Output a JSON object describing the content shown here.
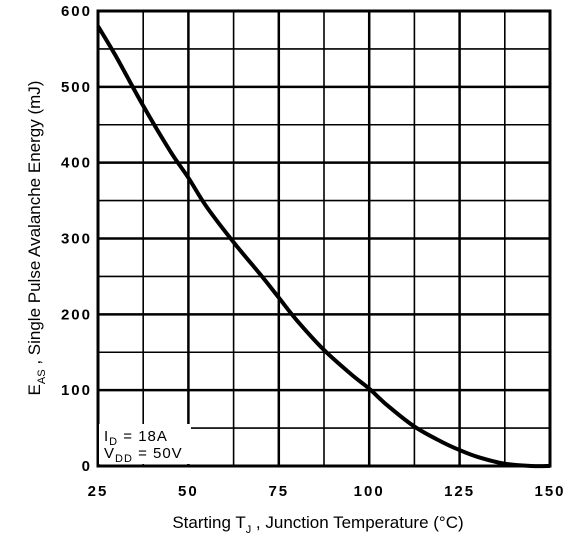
{
  "chart_data": {
    "type": "line",
    "xlabel_prefix": "Starting T",
    "xlabel_sub": "J",
    "xlabel_suffix": " , Junction Temperature (°C)",
    "ylabel_symbol": "E",
    "ylabel_sub": "AS",
    "ylabel_text": " ,   Single Pulse Avalanche Energy (mJ)",
    "xlim": [
      25,
      150
    ],
    "ylim": [
      0,
      600
    ],
    "x_ticks": [
      25,
      50,
      75,
      100,
      125,
      150
    ],
    "y_ticks": [
      0,
      100,
      200,
      300,
      400,
      500,
      600
    ],
    "x_ticks_labels": [
      "25",
      "50",
      "75",
      "100",
      "125",
      "150"
    ],
    "y_ticks_labels": [
      "0",
      "100",
      "200",
      "300",
      "400",
      "500",
      "600"
    ],
    "x_grid_step": 12.5,
    "y_grid_step": 50,
    "grid": true,
    "series": [
      {
        "x": [
          25,
          30,
          37.5,
          45,
          50,
          55,
          62.5,
          70,
          75,
          80,
          87.5,
          95,
          100,
          105,
          112.5,
          120,
          125,
          130,
          137.5,
          145,
          150
        ],
        "y": [
          580,
          540,
          475,
          415,
          380,
          342,
          295,
          252,
          222,
          192,
          153,
          121,
          102,
          80,
          52,
          32,
          21,
          12,
          3,
          0,
          0
        ]
      }
    ],
    "annotations": [
      {
        "symbol": "I",
        "sub": "D",
        "text": " = 18A"
      },
      {
        "symbol": "V",
        "sub": "DD",
        "text": " = 50V"
      }
    ],
    "colors": {
      "line": "#000000",
      "grid": "#000000",
      "background": "#ffffff"
    }
  }
}
